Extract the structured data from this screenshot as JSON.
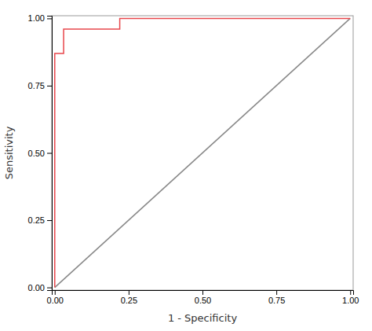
{
  "chart_data": {
    "type": "line",
    "xlabel": "1 - Specificity",
    "ylabel": "Sensitivity",
    "series": [
      {
        "color": "#888888",
        "x": [
          0.0,
          1.0
        ],
        "values": [
          0.0,
          1.0
        ]
      },
      {
        "color": "#e8474c",
        "x": [
          0.0,
          0.0,
          0.03,
          0.03,
          0.22,
          0.22,
          1.0
        ],
        "values": [
          0.0,
          0.87,
          0.87,
          0.96,
          0.96,
          1.0,
          1.0
        ]
      }
    ],
    "xlim": [
      -0.01,
      1.01
    ],
    "ylim": [
      -0.01,
      1.01
    ],
    "xticks": [
      {
        "value": 0.0,
        "label": "0.00"
      },
      0.25,
      {
        "value": 0.5,
        "label": "0.50"
      },
      0.75,
      {
        "value": 1.0,
        "label": "1.00"
      }
    ],
    "yticks": [
      {
        "value": 0.0,
        "label": "0.00"
      },
      0.25,
      {
        "value": 0.5,
        "label": "0.50"
      },
      0.75,
      {
        "value": 1.0,
        "label": "1.00"
      }
    ],
    "grid": false
  }
}
